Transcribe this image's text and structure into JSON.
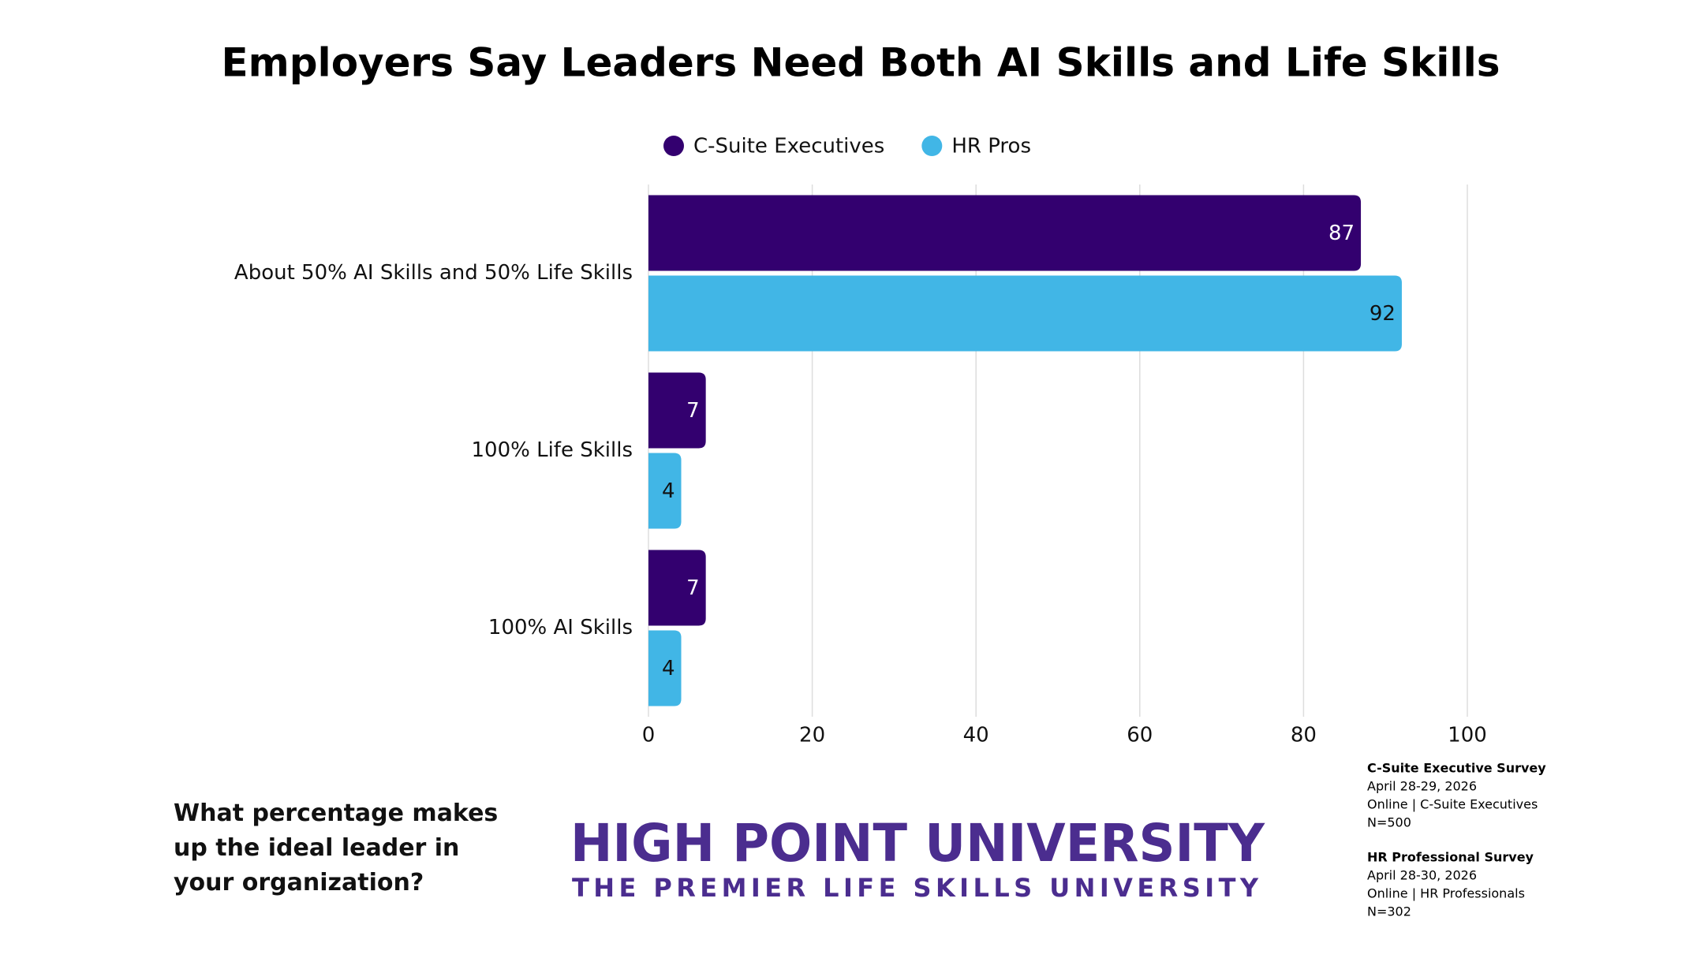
{
  "chart_data": {
    "type": "hbar",
    "title": "Employers Say Leaders Need Both AI Skills and Life Skills",
    "categories": [
      "About 50% AI Skills and 50% Life Skills",
      "100% Life Skills",
      "100% AI Skills"
    ],
    "series": [
      {
        "name": "C-Suite Executives",
        "color": "#33006f",
        "values": [
          87,
          7,
          7
        ]
      },
      {
        "name": "HR Pros",
        "color": "#41b6e6",
        "values": [
          92,
          4,
          4
        ]
      }
    ],
    "xlim": [
      0,
      100
    ],
    "xticks": [
      0,
      20,
      40,
      60,
      80,
      100
    ],
    "grid": true,
    "legend": "top"
  },
  "question": "What percentage makes up the ideal leader in your organization?",
  "branding": {
    "name": "HIGH POINT UNIVERSITY",
    "tagline": "THE PREMIER LIFE SKILLS UNIVERSITY"
  },
  "sources": [
    {
      "title": "C-Suite Executive Survey",
      "lines": [
        "April 28-29, 2026",
        "Online | C-Suite Executives",
        "N=500"
      ]
    },
    {
      "title": "HR Professional Survey",
      "lines": [
        "April 28-30, 2026",
        "Online | HR Professionals",
        "N=302"
      ]
    }
  ]
}
